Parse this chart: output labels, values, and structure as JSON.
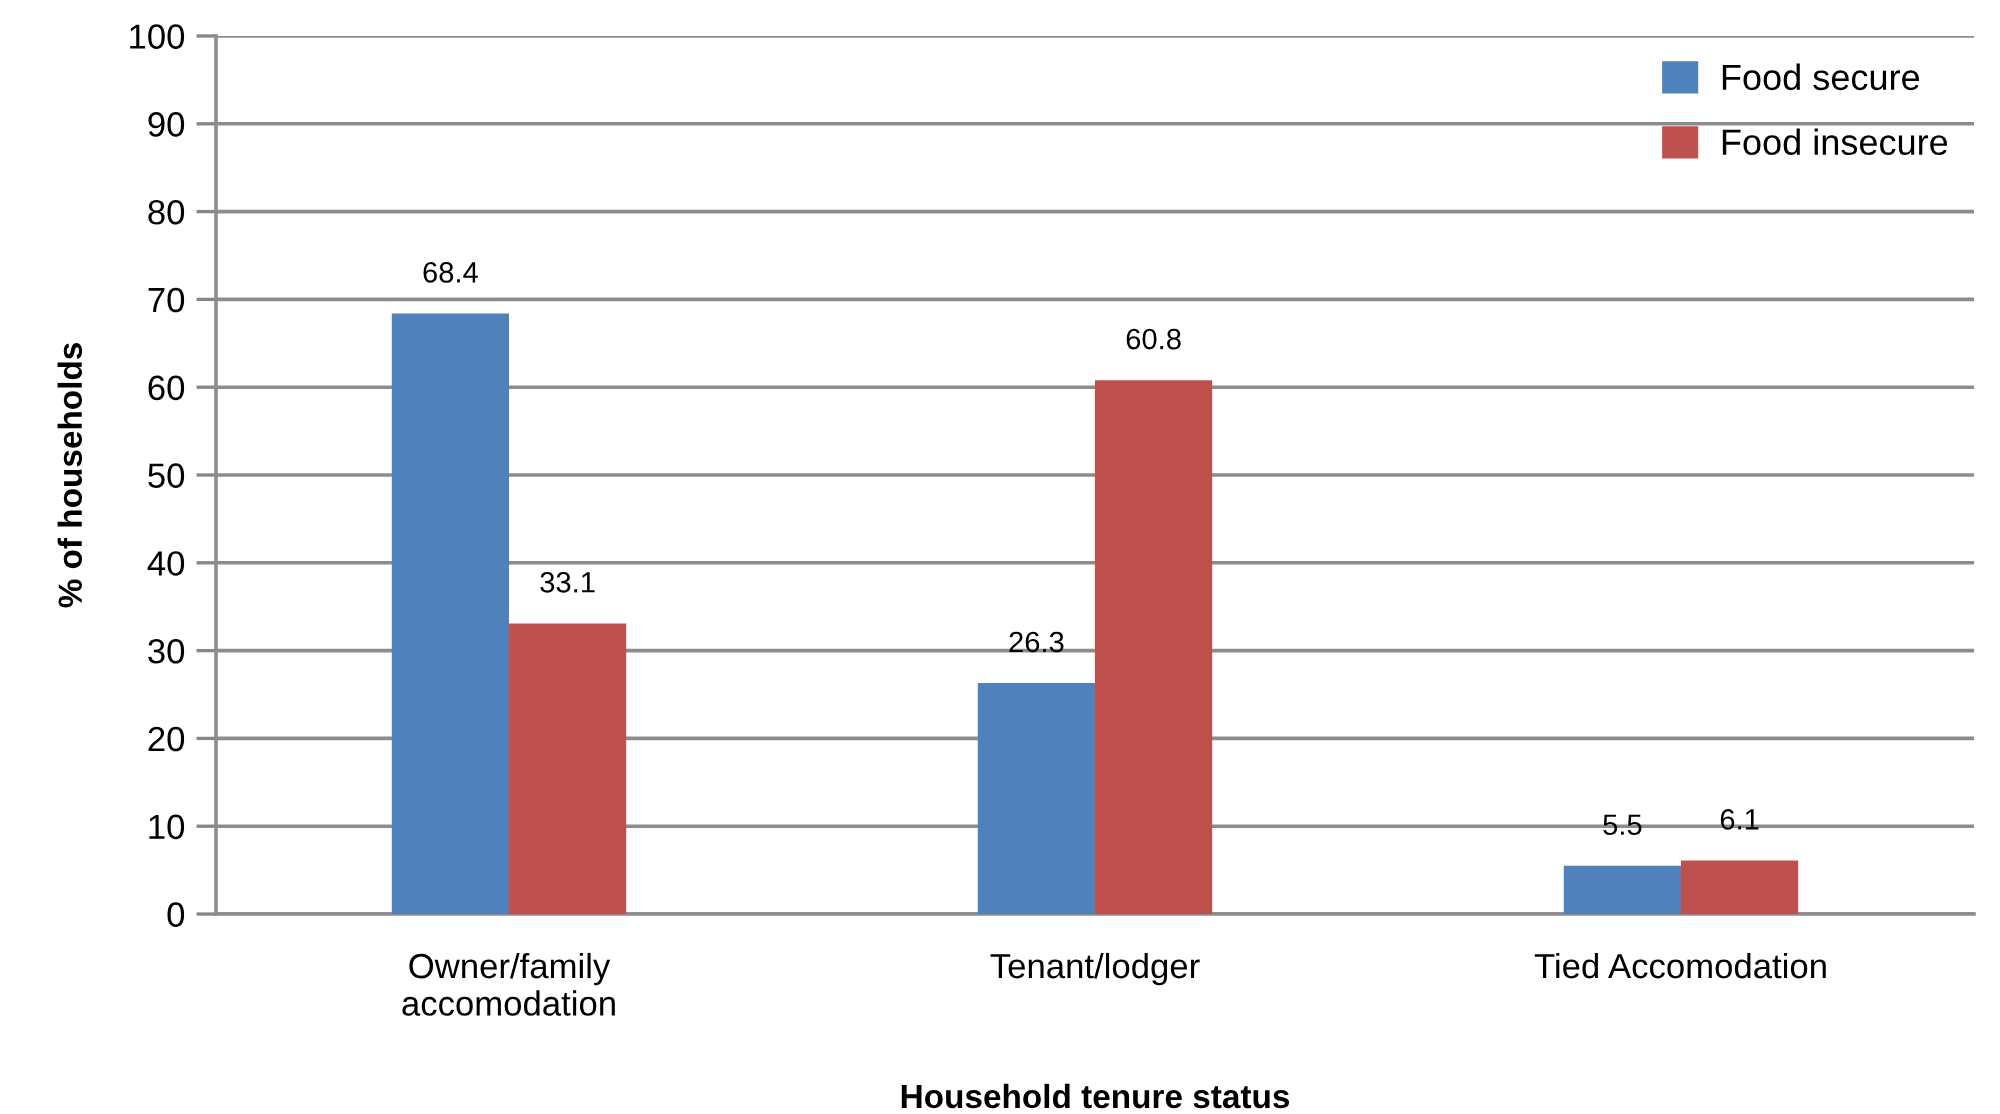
{
  "chart_data": {
    "type": "bar",
    "xlabel": "Household tenure status",
    "ylabel": "% of households",
    "categories": [
      "Owner/family\naccomodation",
      "Tenant/lodger",
      "Tied Accomodation"
    ],
    "series": [
      {
        "name": "Food secure",
        "color": "#4f81bd",
        "values": [
          68.4,
          26.3,
          5.5
        ]
      },
      {
        "name": "Food insecure",
        "color": "#c0504d",
        "values": [
          33.1,
          60.8,
          6.1
        ]
      }
    ],
    "ylim": [
      0,
      100
    ],
    "yticks": [
      0,
      10,
      20,
      30,
      40,
      50,
      60,
      70,
      80,
      90,
      100
    ],
    "grid": "y",
    "legend": "top right",
    "data_labels": true
  }
}
